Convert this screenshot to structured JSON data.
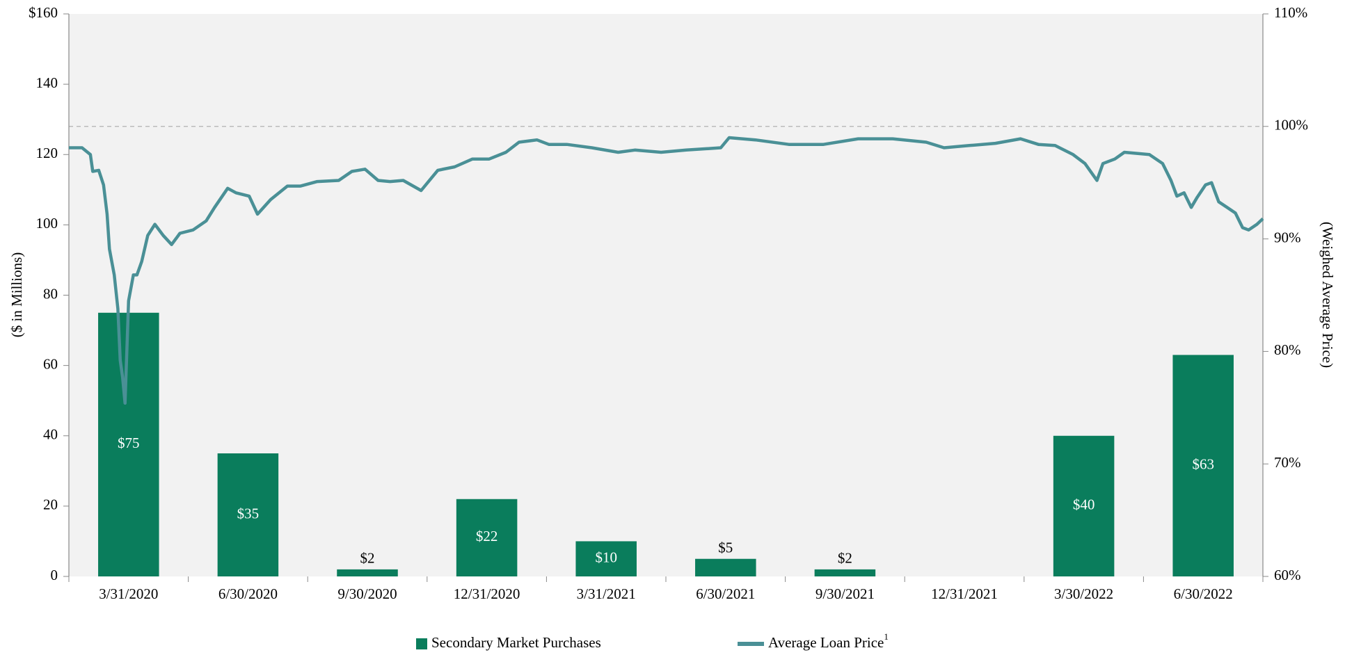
{
  "chart_data": {
    "type": "bar",
    "categories": [
      "3/31/2020",
      "6/30/2020",
      "9/30/2020",
      "12/31/2020",
      "3/31/2021",
      "6/30/2021",
      "9/30/2021",
      "12/31/2021",
      "3/30/2022",
      "6/30/2022"
    ],
    "series": [
      {
        "name": "Secondary Market Purchases",
        "type": "bar",
        "color": "#0a7d5c",
        "values": [
          75,
          35,
          2,
          22,
          10,
          5,
          2,
          null,
          40,
          63
        ],
        "value_labels": [
          "$75",
          "$35",
          "$2",
          "$22",
          "$10",
          "$5",
          "$2",
          null,
          "$40",
          "$63"
        ]
      },
      {
        "name": "Average Loan Price",
        "type": "line",
        "axis": "y2",
        "color": "#4a9096",
        "x": [
          -0.5,
          -0.39,
          -0.32,
          -0.3,
          -0.25,
          -0.21,
          -0.18,
          -0.16,
          -0.12,
          -0.09,
          -0.07,
          -0.05,
          -0.03,
          0,
          0.04,
          0.07,
          0.11,
          0.16,
          0.22,
          0.29,
          0.36,
          0.43,
          0.54,
          0.65,
          0.72,
          0.83,
          0.9,
          1.01,
          1.08,
          1.19,
          1.33,
          1.44,
          1.58,
          1.76,
          1.87,
          1.98,
          2.09,
          2.19,
          2.3,
          2.45,
          2.59,
          2.73,
          2.88,
          3.02,
          3.16,
          3.27,
          3.42,
          3.52,
          3.67,
          3.88,
          4.1,
          4.24,
          4.46,
          4.67,
          4.96,
          5.03,
          5.25,
          5.53,
          5.82,
          6.11,
          6.4,
          6.68,
          6.83,
          7.04,
          7.26,
          7.47,
          7.62,
          7.76,
          7.91,
          8.01,
          8.11,
          8.16,
          8.26,
          8.34,
          8.55,
          8.66,
          8.73,
          8.78,
          8.84,
          8.9,
          8.95,
          9.02,
          9.07,
          9.13,
          9.2,
          9.27,
          9.33,
          9.38,
          9.45,
          9.5
        ],
        "values": [
          98.1,
          98.1,
          97.5,
          96.0,
          96.1,
          94.8,
          92.2,
          89.1,
          86.8,
          83.8,
          79.2,
          77.7,
          75.4,
          84.5,
          86.8,
          86.8,
          88.0,
          90.3,
          91.3,
          90.3,
          89.5,
          90.5,
          90.8,
          91.6,
          92.8,
          94.5,
          94.1,
          93.8,
          92.2,
          93.5,
          94.7,
          94.7,
          95.1,
          95.2,
          96.0,
          96.2,
          95.2,
          95.1,
          95.2,
          94.3,
          96.1,
          96.4,
          97.1,
          97.1,
          97.7,
          98.6,
          98.8,
          98.4,
          98.4,
          98.1,
          97.7,
          97.9,
          97.7,
          97.9,
          98.1,
          99.0,
          98.8,
          98.4,
          98.4,
          98.9,
          98.9,
          98.6,
          98.1,
          98.3,
          98.5,
          98.9,
          98.4,
          98.3,
          97.5,
          96.7,
          95.2,
          96.7,
          97.1,
          97.7,
          97.5,
          96.7,
          95.2,
          93.8,
          94.1,
          92.8,
          93.7,
          94.8,
          95.0,
          93.3,
          92.8,
          92.3,
          91.0,
          90.8,
          91.3,
          91.8
        ]
      }
    ],
    "y_label": "($ in Millions)",
    "y2_label": "(Weighed Average Price)",
    "legend_footnote": "1",
    "ylim": [
      0,
      160
    ],
    "yticks": [
      0,
      20,
      40,
      60,
      80,
      100,
      120,
      140,
      {
        "value": 160,
        "label": "$160"
      }
    ],
    "y2lim": [
      60,
      110
    ],
    "y2ticks": [
      {
        "value": 60,
        "label": "60%"
      },
      {
        "value": 70,
        "label": "70%"
      },
      {
        "value": 80,
        "label": "80%"
      },
      {
        "value": 90,
        "label": "90%"
      },
      {
        "value": 100,
        "label": "100%"
      },
      {
        "value": 110,
        "label": "110%"
      }
    ],
    "reference_line_y2": 100,
    "plot_background": "#f2f2f2",
    "legend": "bottom"
  }
}
